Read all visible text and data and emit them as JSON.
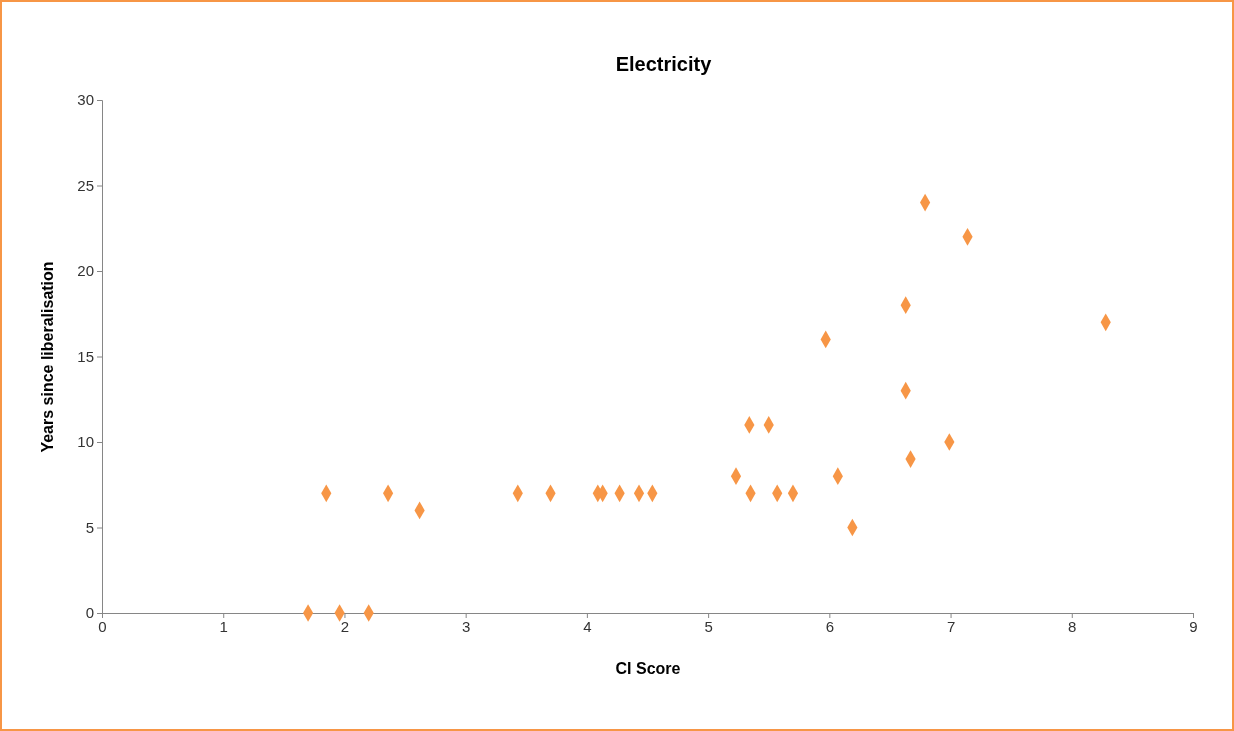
{
  "chart_data": {
    "type": "scatter",
    "title": "Electricity",
    "xlabel": "CI Score",
    "ylabel": "Years since liberalisation",
    "x": [
      1.7,
      1.85,
      1.96,
      2.2,
      2.36,
      2.62,
      3.43,
      3.7,
      4.09,
      4.13,
      4.27,
      4.43,
      4.54,
      5.23,
      5.34,
      5.35,
      5.5,
      5.57,
      5.7,
      5.97,
      6.07,
      6.19,
      6.63,
      6.63,
      6.67,
      6.79,
      6.99,
      7.14,
      8.28
    ],
    "series": [
      {
        "color": "#f79646",
        "values": [
          0,
          7,
          0,
          0,
          7,
          6,
          7,
          7,
          7,
          7,
          7,
          7,
          7,
          8,
          11,
          7,
          11,
          7,
          7,
          16,
          8,
          5,
          18,
          13,
          9,
          24,
          10,
          22,
          17
        ]
      }
    ],
    "xlim": [
      0,
      9
    ],
    "xticks": [
      0,
      1,
      2,
      3,
      4,
      5,
      6,
      7,
      8,
      9
    ],
    "ylim": [
      0,
      30
    ],
    "yticks": [
      0,
      5,
      10,
      15,
      20,
      25,
      30
    ],
    "marker": "diamond",
    "grid": false
  }
}
